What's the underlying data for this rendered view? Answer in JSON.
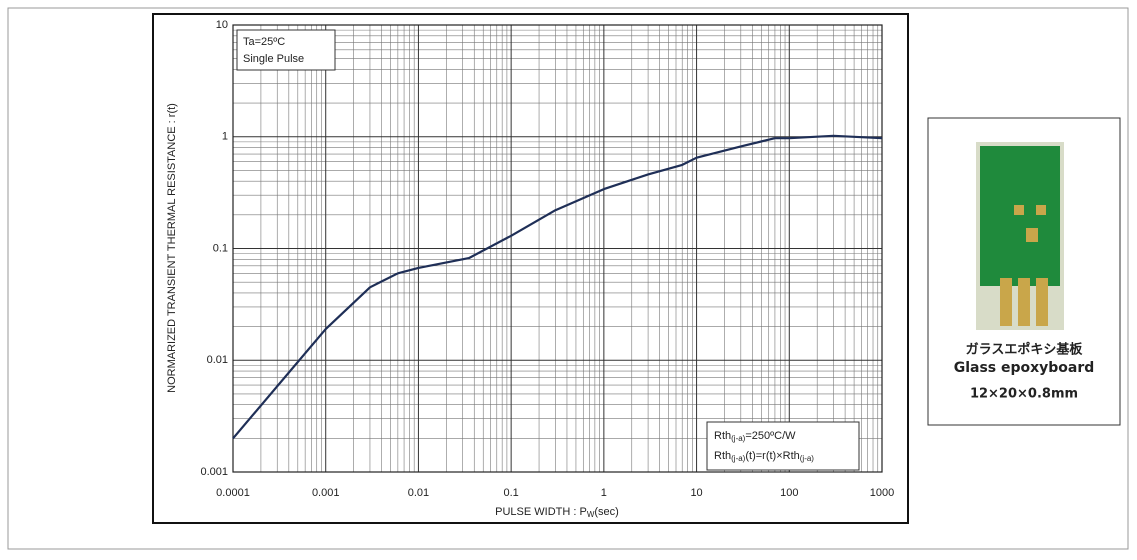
{
  "chart_data": {
    "type": "line",
    "y_label": "NORMARIZED TRANSIENT THERMAL RESISTANCE : r(t)",
    "x_label": [
      "PULSE WIDTH : P",
      "W",
      "(sec)"
    ],
    "x": [
      0.0001,
      0.001,
      0.003,
      0.006,
      0.01,
      0.035,
      0.1,
      0.3,
      1,
      3,
      7,
      10,
      30,
      70,
      100,
      300,
      1000
    ],
    "values": [
      0.002,
      0.019,
      0.045,
      0.06,
      0.067,
      0.082,
      0.13,
      0.22,
      0.34,
      0.46,
      0.56,
      0.65,
      0.82,
      0.97,
      0.97,
      1.02,
      0.97
    ],
    "color": "#1f2f57",
    "xlim": [
      0.0001,
      1000
    ],
    "ylim": [
      0.001,
      10
    ],
    "xticks": [
      0.0001,
      0.001,
      0.01,
      0.1,
      1,
      10,
      100,
      1000
    ],
    "yticks": [
      0.001,
      0.01,
      0.1,
      1,
      10
    ],
    "xscale": "log",
    "yscale": "log",
    "grid": true,
    "minor_grid": true,
    "conditions": [
      "Ta=25ºC",
      "Single Pulse"
    ],
    "rth_note": [
      [
        "Rth",
        "(j-a)",
        "=250ºC/W"
      ],
      [
        "Rth",
        "(j-a)",
        "(t)=r(t)×Rth",
        "(j-a)"
      ]
    ]
  },
  "board": {
    "name_jp": "ガラスエポキシ基板",
    "name_en": "Glass epoxyboard",
    "size": "12×20×0.8mm"
  }
}
